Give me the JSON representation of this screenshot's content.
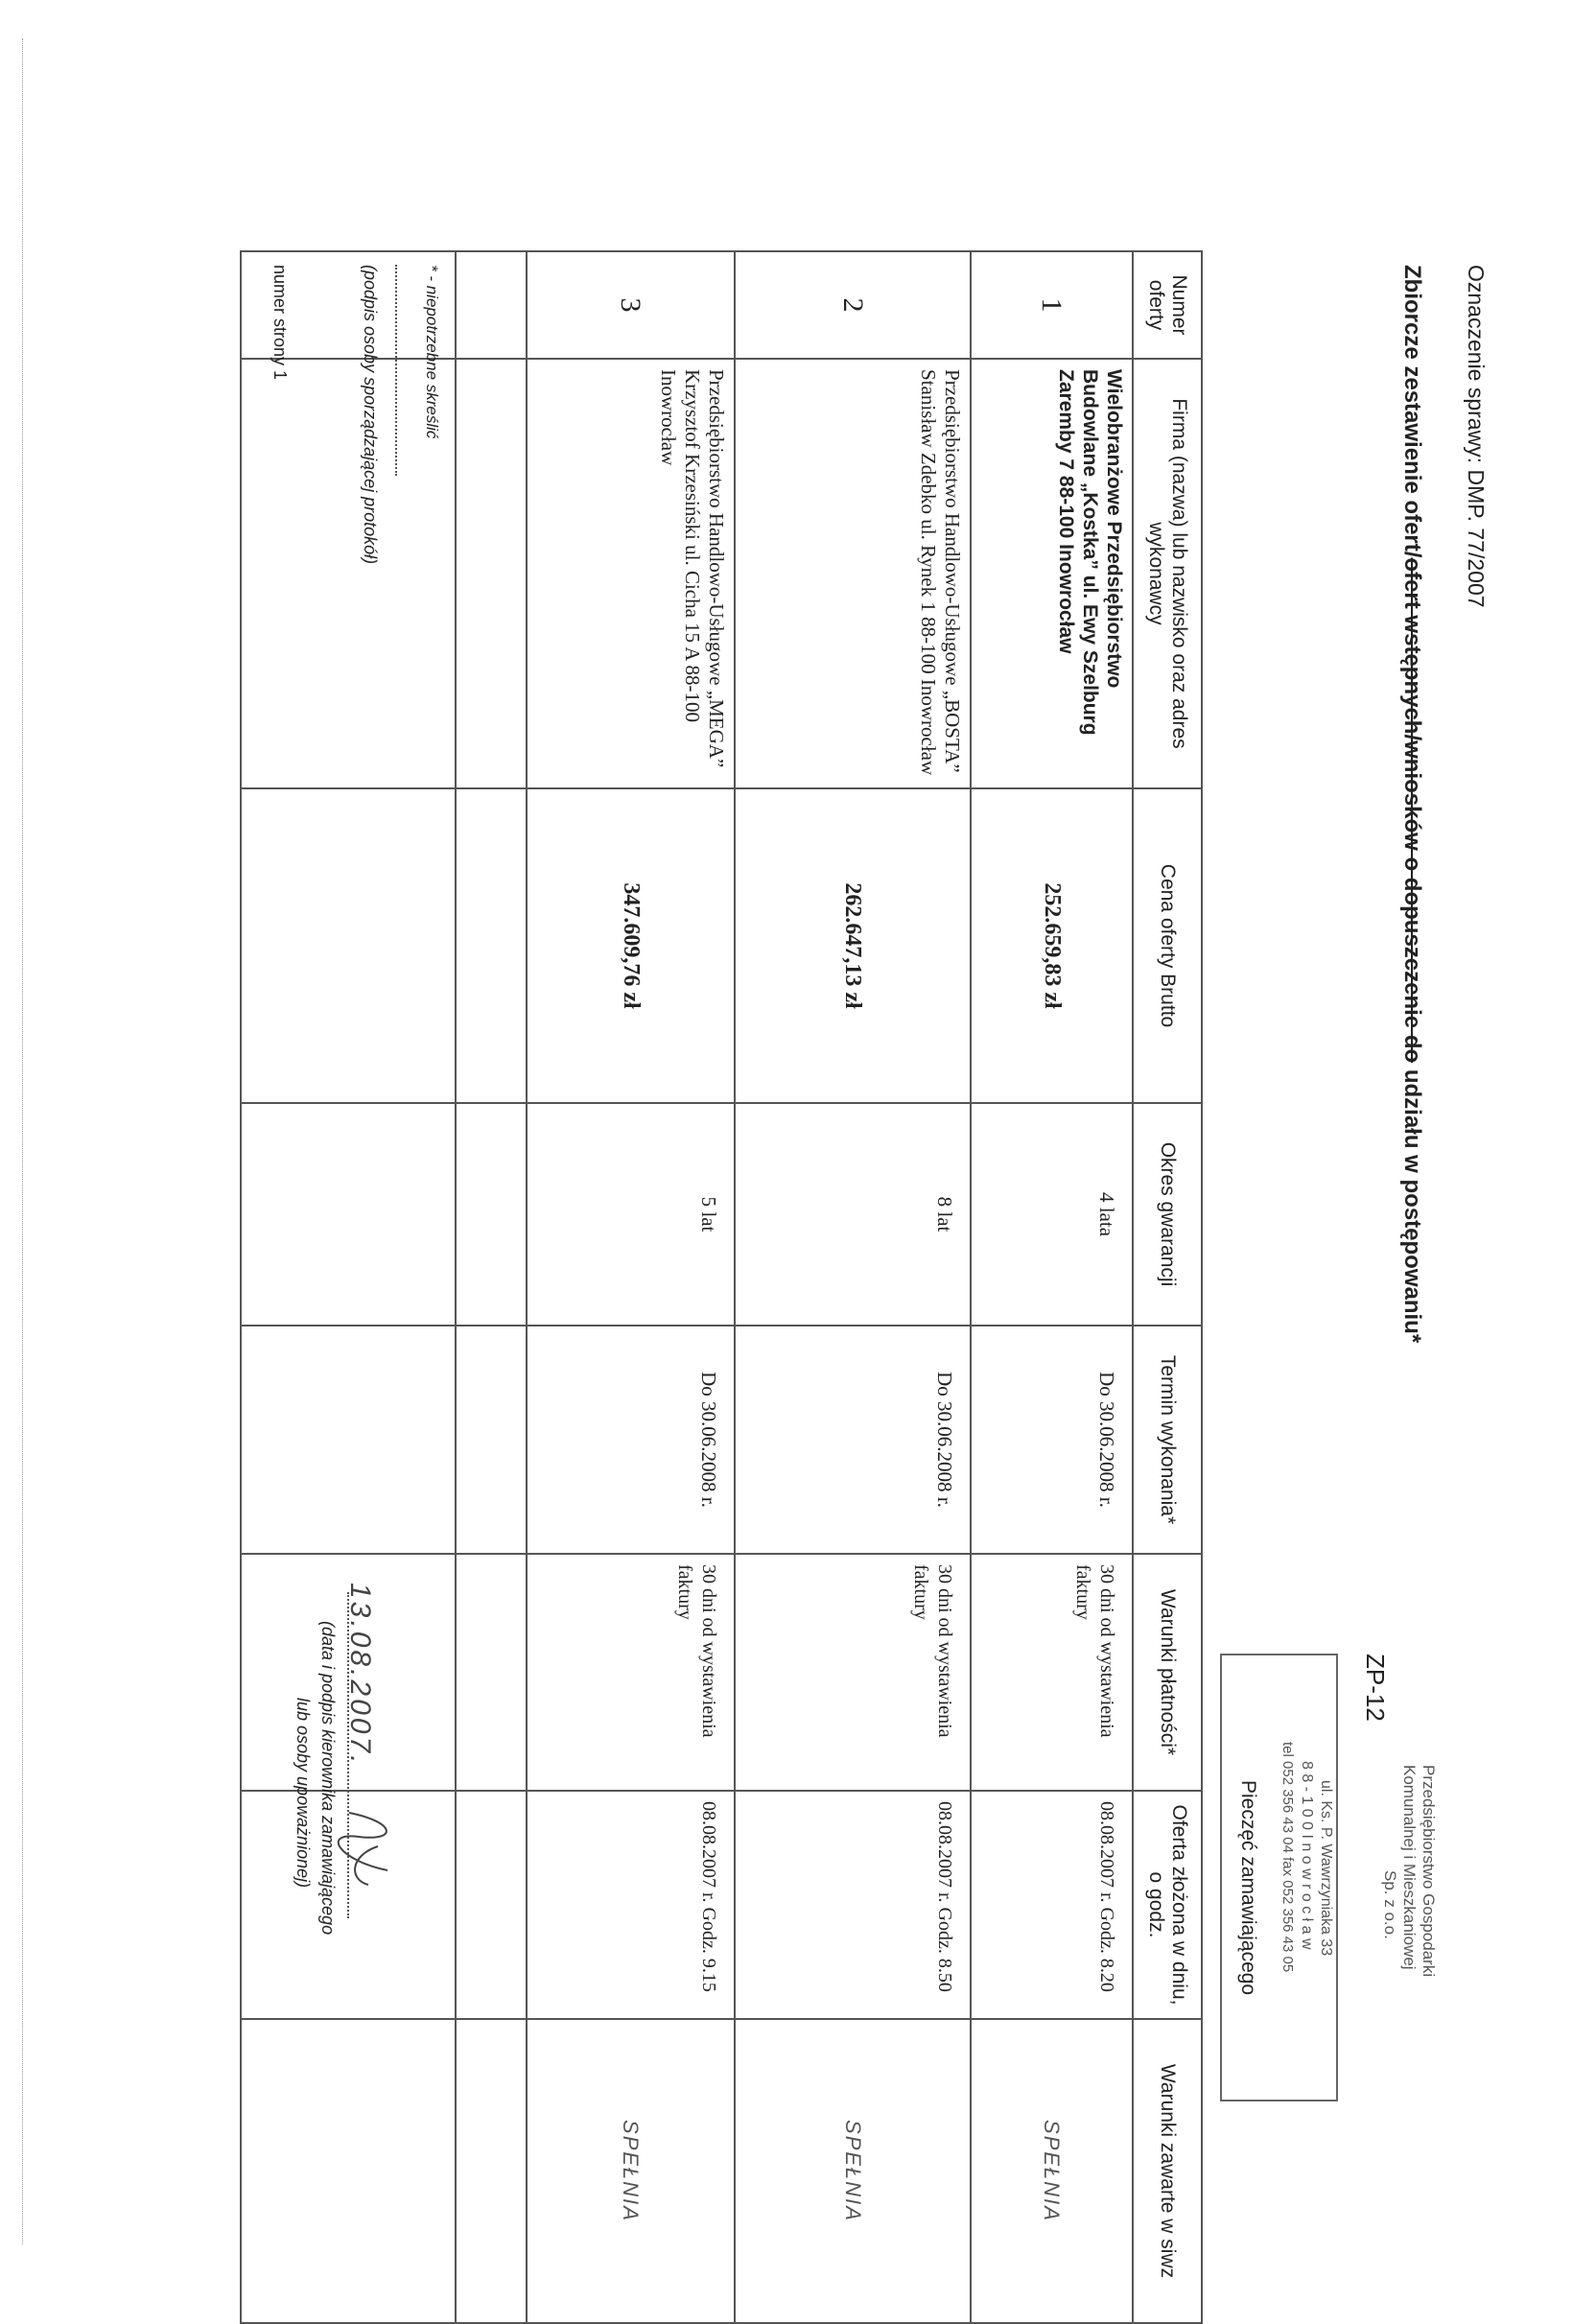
{
  "header": {
    "case_label": "Oznaczenie sprawy: DMP. 77/2007",
    "title_prefix": "Zbiorcze zestawienie ofert/",
    "title_struck": "ofert wstępnych/wniosków o dopuszczenie do",
    "title_suffix": " udziału w postępowaniu*",
    "form_code": "ZP-12"
  },
  "stamp": {
    "org_line1": "Przedsiębiorstwo Gospodarki",
    "org_line2": "Komunalnej i Mieszkaniowej",
    "org_line3": "Sp. z o.o.",
    "address": "ul. Ks. P. Wawrzyniaka 33",
    "city": "8 8 - 1 0 0  I n o w r o c ł a w",
    "phone": "tel 052 356 43 04 fax 052 356 43 05",
    "caption": "Pieczęć zamawiającego"
  },
  "table": {
    "headers": [
      "Numer oferty",
      "Firma (nazwa) lub nazwisko oraz adres wykonawcy",
      "Cena oferty Brutto",
      "Okres gwarancji",
      "Termin wykonania*",
      "Warunki płatności*",
      "Oferta złożona w dniu, o godz.",
      "Warunki zawarte w siwz"
    ],
    "rows": [
      {
        "number": "1",
        "firm": "Wielobranżowe Przedsiębiorstwo Budowlane „Kostka” ul. Ewy Szelburg Zaremby 7 88-100 Inowrocław",
        "price": "252.659,83 zł",
        "warranty": "4 lata",
        "deadline": "Do 30.06.2008 r.",
        "payment": "30 dni od wystawienia faktury",
        "submitted": "08.08.2007 r. Godz. 8.20",
        "siwz": "SPEŁNIA"
      },
      {
        "number": "2",
        "firm": "Przedsiębiorstwo Handlowo-Usługowe „BOSTA” Stanisław Zdebko ul. Rynek 1 88-100 Inowrocław",
        "price": "262.647,13 zł",
        "warranty": "8 lat",
        "deadline": "Do 30.06.2008 r.",
        "payment": "30 dni od wystawienia faktury",
        "submitted": "08.08.2007 r. Godz. 8.50",
        "siwz": "SPEŁNIA"
      },
      {
        "number": "3",
        "firm": "Przedsiębiorstwo Handlowo-Usługowe „MEGA” Krzysztof Krzesiński ul. Cicha 15 A 88-100 Inowrocław",
        "price": "347.609,76 zł",
        "warranty": "5 lat",
        "deadline": "Do 30.06.2008 r.",
        "payment": "30 dni od wystawienia faktury",
        "submitted": "08.08.2007 r. Godz. 9.15",
        "siwz": "SPEŁNIA"
      }
    ]
  },
  "footer": {
    "footnote": "* - niepotrzebne skreślić",
    "preparer_caption": "(podpis osoby sporządzającej protokół)",
    "date_handwritten": "13.08.2007.",
    "manager_caption_1": "(data i podpis kierownika zamawiającego",
    "manager_caption_2": "lub osoby upoważnionej)",
    "page_number": "numer strony 1"
  }
}
